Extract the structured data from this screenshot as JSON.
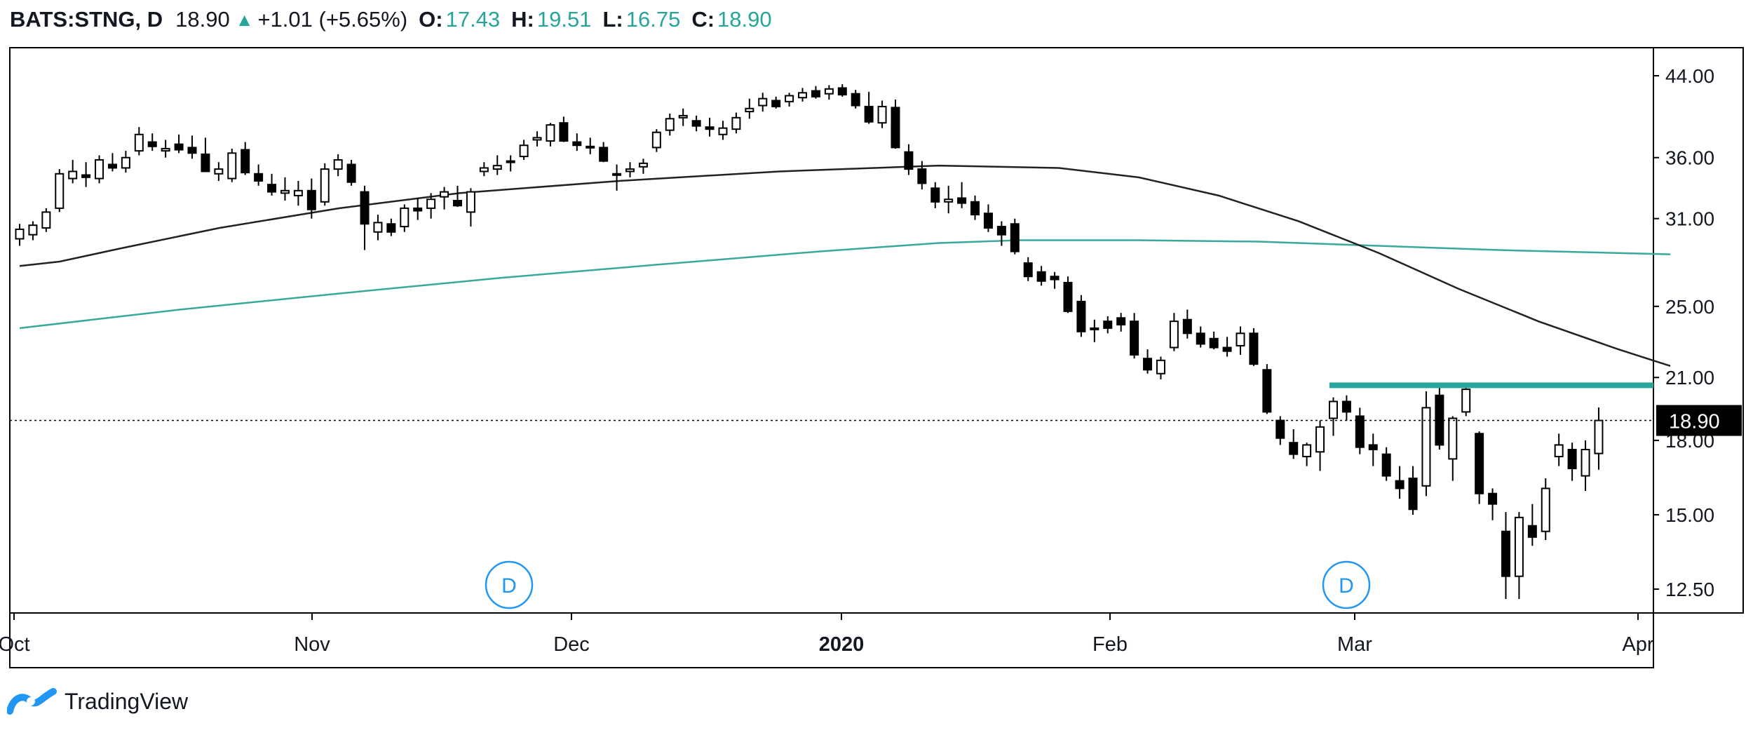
{
  "header": {
    "symbol": "BATS:STNG, D",
    "price": "18.90",
    "change": "+1.01 (+5.65%)",
    "open_label": "O:",
    "open": "17.43",
    "high_label": "H:",
    "high": "19.51",
    "low_label": "L:",
    "low": "16.75",
    "close_label": "C:",
    "close": "18.90"
  },
  "brand": "TradingView",
  "colors": {
    "up_accent": "#26a69a",
    "candle_down": "#000000",
    "candle_up_fill": "#ffffff",
    "ma_short": "#222222",
    "ma_long": "#3aa89a",
    "resistance": "#26a69a"
  },
  "chart_data": {
    "type": "candlestick",
    "scale": "log",
    "y_ticks": [
      "44.00",
      "36.00",
      "31.00",
      "25.00",
      "21.00",
      "18.00",
      "15.00",
      "12.50"
    ],
    "x_ticks": [
      "Oct",
      "Nov",
      "Dec",
      "2020",
      "Feb",
      "Mar",
      "Apr"
    ],
    "last_price_label": "18.90",
    "dividend_markers": [
      "D",
      "D"
    ],
    "resistance_level": 20.6,
    "ohlc": [
      [
        29.5,
        30.6,
        29.0,
        30.2
      ],
      [
        29.8,
        30.8,
        29.4,
        30.5
      ],
      [
        30.3,
        31.8,
        30.0,
        31.5
      ],
      [
        31.8,
        35.0,
        31.5,
        34.6
      ],
      [
        34.2,
        35.8,
        33.8,
        34.8
      ],
      [
        34.5,
        35.6,
        33.5,
        34.3
      ],
      [
        34.2,
        36.2,
        33.8,
        35.8
      ],
      [
        35.4,
        36.4,
        34.8,
        35.1
      ],
      [
        35.1,
        36.6,
        34.7,
        36.0
      ],
      [
        36.6,
        38.8,
        36.2,
        38.1
      ],
      [
        37.4,
        38.2,
        36.6,
        37.0
      ],
      [
        36.6,
        37.6,
        36.0,
        36.8
      ],
      [
        37.2,
        38.1,
        36.4,
        36.7
      ],
      [
        36.9,
        38.0,
        35.9,
        36.4
      ],
      [
        36.3,
        37.8,
        34.8,
        34.8
      ],
      [
        34.6,
        35.6,
        34.0,
        35.0
      ],
      [
        34.2,
        36.8,
        33.9,
        36.4
      ],
      [
        36.7,
        37.4,
        34.5,
        34.7
      ],
      [
        34.6,
        35.4,
        33.6,
        34.0
      ],
      [
        33.7,
        34.6,
        32.8,
        33.1
      ],
      [
        33.0,
        34.3,
        32.4,
        33.2
      ],
      [
        32.8,
        34.0,
        32.0,
        33.2
      ],
      [
        33.2,
        34.2,
        31.0,
        31.7
      ],
      [
        32.3,
        35.5,
        32.0,
        35.0
      ],
      [
        35.0,
        36.3,
        34.4,
        35.8
      ],
      [
        35.4,
        35.8,
        33.6,
        33.9
      ],
      [
        33.1,
        33.6,
        28.7,
        30.6
      ],
      [
        30.0,
        31.3,
        29.4,
        30.7
      ],
      [
        30.6,
        31.0,
        29.7,
        30.0
      ],
      [
        30.4,
        32.1,
        30.0,
        31.8
      ],
      [
        31.8,
        32.6,
        30.9,
        31.6
      ],
      [
        31.8,
        33.0,
        31.0,
        32.5
      ],
      [
        32.7,
        33.5,
        31.7,
        33.1
      ],
      [
        32.4,
        33.6,
        31.9,
        32.0
      ],
      [
        31.5,
        33.4,
        30.4,
        33.1
      ],
      [
        34.8,
        35.6,
        34.4,
        35.1
      ],
      [
        35.0,
        36.2,
        34.5,
        35.3
      ],
      [
        35.7,
        36.2,
        34.8,
        35.7
      ],
      [
        36.1,
        37.6,
        35.8,
        37.1
      ],
      [
        37.6,
        38.4,
        37.0,
        37.8
      ],
      [
        37.5,
        39.2,
        37.0,
        39.0
      ],
      [
        39.2,
        39.8,
        37.4,
        37.5
      ],
      [
        37.4,
        38.2,
        36.6,
        37.1
      ],
      [
        36.9,
        37.8,
        36.3,
        37.0
      ],
      [
        36.9,
        37.4,
        35.6,
        35.7
      ],
      [
        34.6,
        35.4,
        33.2,
        34.5
      ],
      [
        34.8,
        35.6,
        34.3,
        35.0
      ],
      [
        35.2,
        35.9,
        34.6,
        35.5
      ],
      [
        36.9,
        38.6,
        36.5,
        38.3
      ],
      [
        38.5,
        40.1,
        38.0,
        39.6
      ],
      [
        39.7,
        40.6,
        38.9,
        39.9
      ],
      [
        39.4,
        39.9,
        38.4,
        38.9
      ],
      [
        38.8,
        39.7,
        37.9,
        38.6
      ],
      [
        38.1,
        39.4,
        37.6,
        38.7
      ],
      [
        38.6,
        40.2,
        38.2,
        39.7
      ],
      [
        40.3,
        41.6,
        39.6,
        40.6
      ],
      [
        40.9,
        42.2,
        40.3,
        41.6
      ],
      [
        41.4,
        41.8,
        40.6,
        40.8
      ],
      [
        41.3,
        42.2,
        40.8,
        41.9
      ],
      [
        41.7,
        42.7,
        41.3,
        42.2
      ],
      [
        42.4,
        42.9,
        41.6,
        41.8
      ],
      [
        42.1,
        43.0,
        41.5,
        42.6
      ],
      [
        42.7,
        43.1,
        41.8,
        42.0
      ],
      [
        42.1,
        42.5,
        40.6,
        40.9
      ],
      [
        40.8,
        42.3,
        39.1,
        39.3
      ],
      [
        39.2,
        41.4,
        38.7,
        40.8
      ],
      [
        40.7,
        41.5,
        36.8,
        36.9
      ],
      [
        36.5,
        37.2,
        34.5,
        35.0
      ],
      [
        35.0,
        35.7,
        33.3,
        33.8
      ],
      [
        33.4,
        33.9,
        31.8,
        32.3
      ],
      [
        32.3,
        33.6,
        31.4,
        32.5
      ],
      [
        32.6,
        33.9,
        31.8,
        32.2
      ],
      [
        32.3,
        32.8,
        30.9,
        31.3
      ],
      [
        31.4,
        32.1,
        30.0,
        30.3
      ],
      [
        30.4,
        30.8,
        29.0,
        29.8
      ],
      [
        30.6,
        31.0,
        28.4,
        28.6
      ],
      [
        27.8,
        28.2,
        26.6,
        26.9
      ],
      [
        27.2,
        27.6,
        26.3,
        26.6
      ],
      [
        26.9,
        27.2,
        26.1,
        26.7
      ],
      [
        26.5,
        26.9,
        24.6,
        24.7
      ],
      [
        25.3,
        25.7,
        23.2,
        23.5
      ],
      [
        23.7,
        24.2,
        22.9,
        23.7
      ],
      [
        24.1,
        24.4,
        23.4,
        23.7
      ],
      [
        24.3,
        24.6,
        23.5,
        23.9
      ],
      [
        24.1,
        24.6,
        22.0,
        22.2
      ],
      [
        22.0,
        22.5,
        21.2,
        21.4
      ],
      [
        21.2,
        22.1,
        20.9,
        21.9
      ],
      [
        22.6,
        24.6,
        22.4,
        24.1
      ],
      [
        24.2,
        24.8,
        23.1,
        23.4
      ],
      [
        23.4,
        23.8,
        22.6,
        22.8
      ],
      [
        23.1,
        23.5,
        22.5,
        22.6
      ],
      [
        22.6,
        23.2,
        22.1,
        22.4
      ],
      [
        22.7,
        23.8,
        22.2,
        23.4
      ],
      [
        23.4,
        23.7,
        21.6,
        21.7
      ],
      [
        21.4,
        21.7,
        19.2,
        19.3
      ],
      [
        18.9,
        19.1,
        17.8,
        18.1
      ],
      [
        17.9,
        18.5,
        17.2,
        17.4
      ],
      [
        17.3,
        17.9,
        16.9,
        17.8
      ],
      [
        17.5,
        18.9,
        16.7,
        18.6
      ],
      [
        19.0,
        20.0,
        18.2,
        19.8
      ],
      [
        19.8,
        20.1,
        18.9,
        19.3
      ],
      [
        19.1,
        19.5,
        17.4,
        17.7
      ],
      [
        17.8,
        18.3,
        16.9,
        17.6
      ],
      [
        17.4,
        17.7,
        16.3,
        16.5
      ],
      [
        16.3,
        16.9,
        15.6,
        16.0
      ],
      [
        16.4,
        16.9,
        15.0,
        15.2
      ],
      [
        16.1,
        20.3,
        15.7,
        19.5
      ],
      [
        20.1,
        20.6,
        17.6,
        17.8
      ],
      [
        17.2,
        19.1,
        16.3,
        19.0
      ],
      [
        19.3,
        20.6,
        19.1,
        20.4
      ],
      [
        18.3,
        18.4,
        15.4,
        15.8
      ],
      [
        15.8,
        16.0,
        14.8,
        15.4
      ],
      [
        14.4,
        15.1,
        12.2,
        12.9
      ],
      [
        12.9,
        15.1,
        12.2,
        14.9
      ],
      [
        14.6,
        15.4,
        13.9,
        14.2
      ],
      [
        14.4,
        16.4,
        14.1,
        16.0
      ],
      [
        17.3,
        18.3,
        16.9,
        17.8
      ],
      [
        17.6,
        17.9,
        16.3,
        16.8
      ],
      [
        16.5,
        18.0,
        15.9,
        17.6
      ],
      [
        17.43,
        19.51,
        16.75,
        18.9
      ]
    ],
    "ma_short": [
      [
        0,
        27.6
      ],
      [
        10,
        27.9
      ],
      [
        25,
        28.8
      ],
      [
        50,
        30.3
      ],
      [
        80,
        31.8
      ],
      [
        110,
        33.0
      ],
      [
        150,
        34.0
      ],
      [
        190,
        34.8
      ],
      [
        230,
        35.3
      ],
      [
        260,
        35.1
      ],
      [
        280,
        34.3
      ],
      [
        300,
        32.8
      ],
      [
        320,
        30.8
      ],
      [
        340,
        28.5
      ],
      [
        360,
        26.1
      ],
      [
        380,
        24.1
      ],
      [
        400,
        22.5
      ],
      [
        413,
        21.6
      ]
    ],
    "ma_long": [
      [
        0,
        23.7
      ],
      [
        40,
        24.8
      ],
      [
        80,
        25.8
      ],
      [
        120,
        26.8
      ],
      [
        160,
        27.7
      ],
      [
        200,
        28.6
      ],
      [
        230,
        29.2
      ],
      [
        250,
        29.4
      ],
      [
        280,
        29.4
      ],
      [
        310,
        29.3
      ],
      [
        340,
        29.0
      ],
      [
        370,
        28.7
      ],
      [
        413,
        28.4
      ]
    ]
  }
}
